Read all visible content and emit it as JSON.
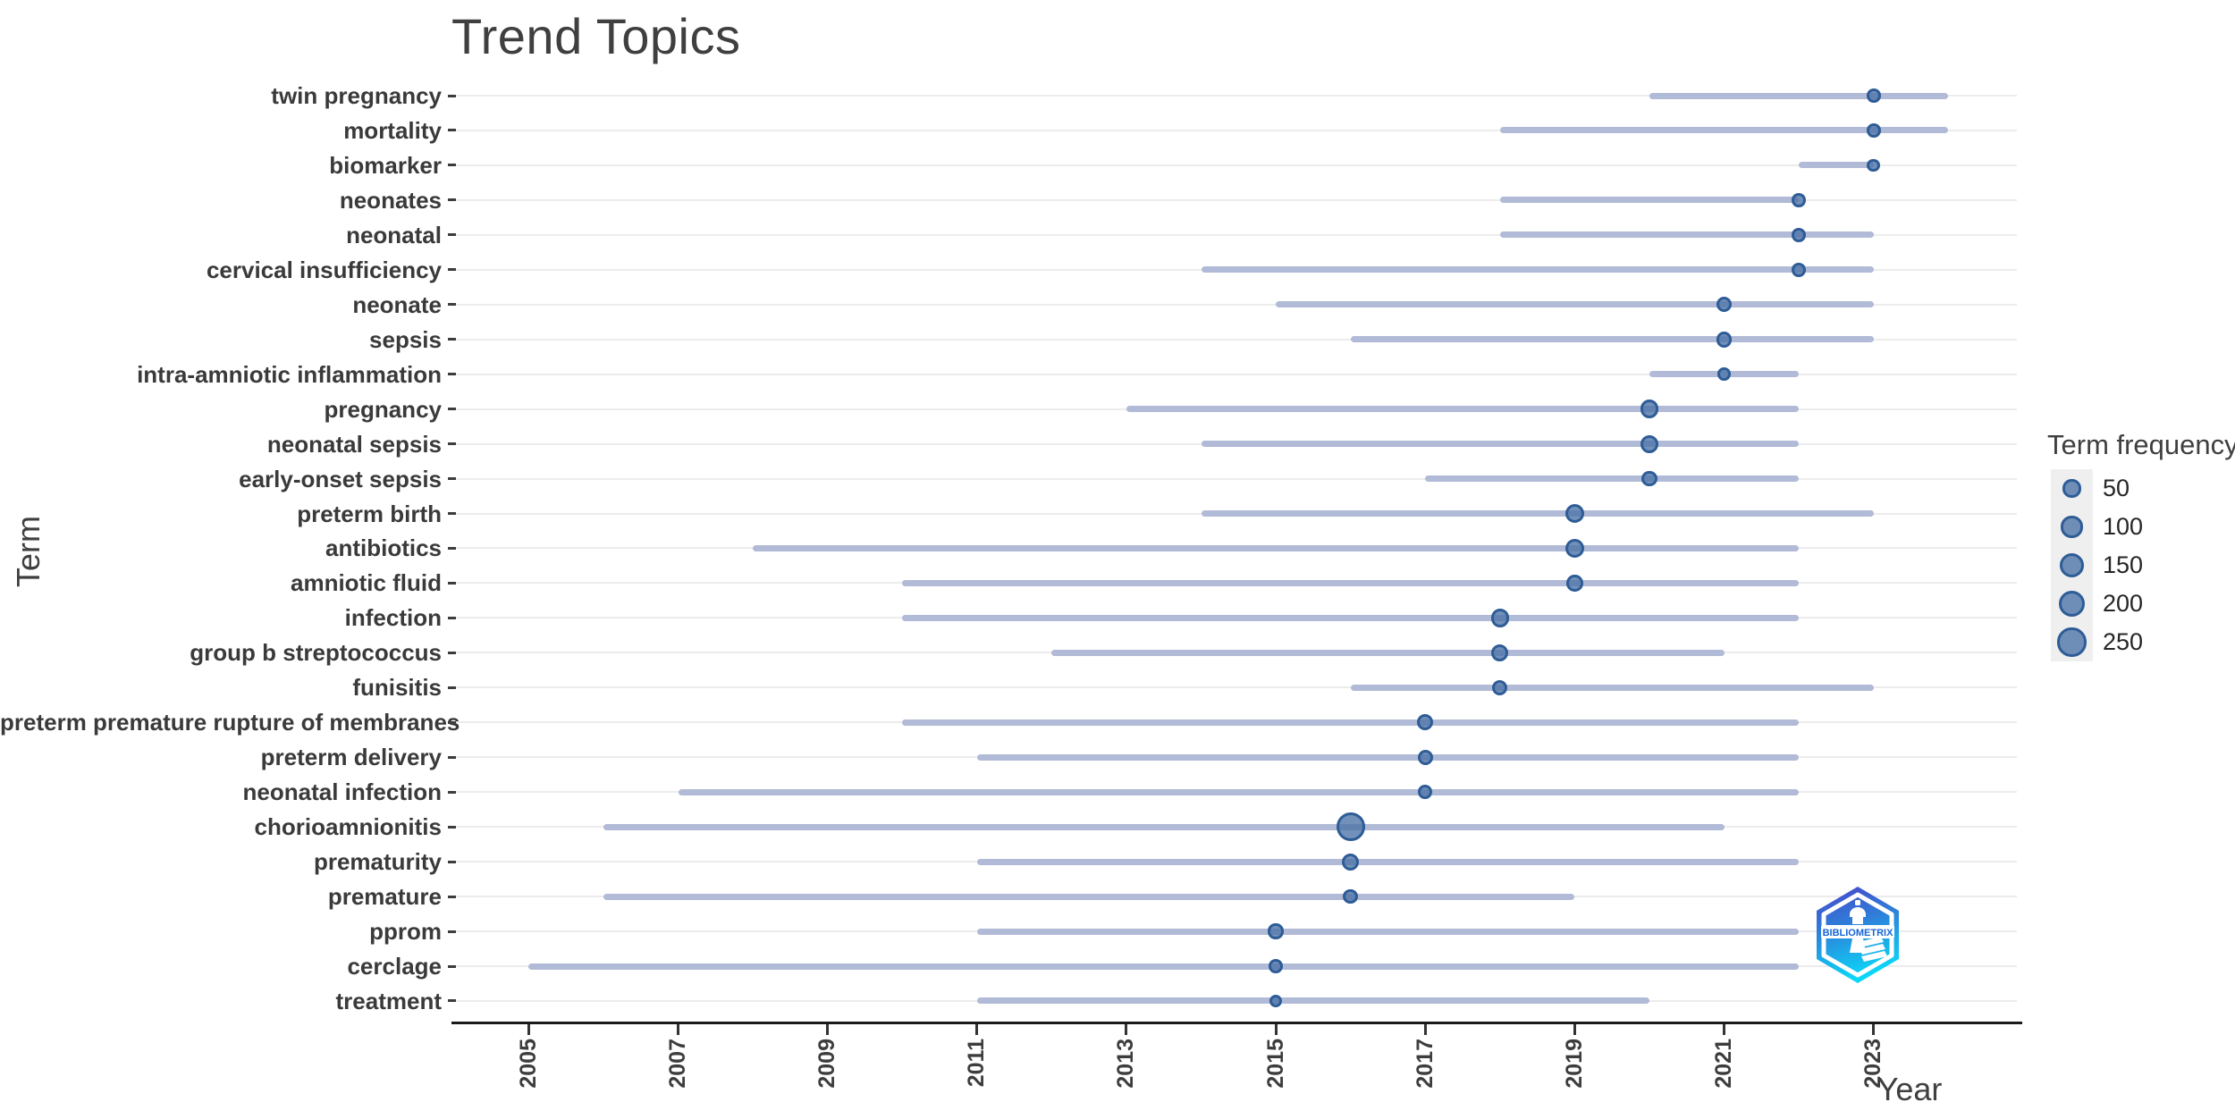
{
  "title": "Trend Topics",
  "logo": {
    "label": "BIBLIOMETRIX"
  },
  "colors": {
    "title_text": "#3f3f3f",
    "axis_text": "#3c3c3c",
    "grid": "#ececec",
    "segment": "#b1bad6",
    "dot_fill": "#6f93bf",
    "dot_stroke": "#2e5c96",
    "legend_key_bg": "#efefef",
    "logo_gradient_top": "#4a43c9",
    "logo_gradient_bottom": "#0cd6f7"
  },
  "chart_data": {
    "type": "scatter",
    "title": "Trend Topics",
    "xlabel": "Year",
    "ylabel": "Term",
    "xlim": [
      2004,
      2025
    ],
    "x_ticks": [
      2005,
      2007,
      2009,
      2011,
      2013,
      2015,
      2017,
      2019,
      2021,
      2023
    ],
    "grid": "horizontal",
    "legend": {
      "title": "Term frequency",
      "position": "right",
      "sizes": [
        50,
        100,
        150,
        200,
        250
      ]
    },
    "terms": [
      {
        "term": "twin pregnancy",
        "year_start": 2020,
        "year_peak": 2023,
        "year_end": 2024,
        "freq": 15
      },
      {
        "term": "mortality",
        "year_start": 2018,
        "year_peak": 2023,
        "year_end": 2024,
        "freq": 15
      },
      {
        "term": "biomarker",
        "year_start": 2022,
        "year_peak": 2023,
        "year_end": 2023,
        "freq": 10
      },
      {
        "term": "neonates",
        "year_start": 2018,
        "year_peak": 2022,
        "year_end": 2022,
        "freq": 15
      },
      {
        "term": "neonatal",
        "year_start": 2018,
        "year_peak": 2022,
        "year_end": 2023,
        "freq": 15
      },
      {
        "term": "cervical insufficiency",
        "year_start": 2014,
        "year_peak": 2022,
        "year_end": 2023,
        "freq": 15
      },
      {
        "term": "neonate",
        "year_start": 2015,
        "year_peak": 2021,
        "year_end": 2023,
        "freq": 25
      },
      {
        "term": "sepsis",
        "year_start": 2016,
        "year_peak": 2021,
        "year_end": 2023,
        "freq": 30
      },
      {
        "term": "intra-amniotic inflammation",
        "year_start": 2020,
        "year_peak": 2021,
        "year_end": 2022,
        "freq": 10
      },
      {
        "term": "pregnancy",
        "year_start": 2013,
        "year_peak": 2020,
        "year_end": 2022,
        "freq": 55
      },
      {
        "term": "neonatal sepsis",
        "year_start": 2014,
        "year_peak": 2020,
        "year_end": 2022,
        "freq": 50
      },
      {
        "term": "early-onset sepsis",
        "year_start": 2017,
        "year_peak": 2020,
        "year_end": 2022,
        "freq": 30
      },
      {
        "term": "preterm birth",
        "year_start": 2014,
        "year_peak": 2019,
        "year_end": 2023,
        "freq": 65
      },
      {
        "term": "antibiotics",
        "year_start": 2008,
        "year_peak": 2019,
        "year_end": 2022,
        "freq": 65
      },
      {
        "term": "amniotic fluid",
        "year_start": 2010,
        "year_peak": 2019,
        "year_end": 2022,
        "freq": 35
      },
      {
        "term": "infection",
        "year_start": 2010,
        "year_peak": 2018,
        "year_end": 2022,
        "freq": 55
      },
      {
        "term": "group b streptococcus",
        "year_start": 2012,
        "year_peak": 2018,
        "year_end": 2021,
        "freq": 40
      },
      {
        "term": "funisitis",
        "year_start": 2016,
        "year_peak": 2018,
        "year_end": 2023,
        "freq": 25
      },
      {
        "term": "preterm premature rupture of membranes",
        "year_start": 2010,
        "year_peak": 2017,
        "year_end": 2022,
        "freq": 30
      },
      {
        "term": "preterm delivery",
        "year_start": 2011,
        "year_peak": 2017,
        "year_end": 2022,
        "freq": 25
      },
      {
        "term": "neonatal infection",
        "year_start": 2007,
        "year_peak": 2017,
        "year_end": 2022,
        "freq": 15
      },
      {
        "term": "chorioamnionitis",
        "year_start": 2006,
        "year_peak": 2016,
        "year_end": 2021,
        "freq": 250
      },
      {
        "term": "prematurity",
        "year_start": 2011,
        "year_peak": 2016,
        "year_end": 2022,
        "freq": 40
      },
      {
        "term": "premature",
        "year_start": 2006,
        "year_peak": 2016,
        "year_end": 2019,
        "freq": 20
      },
      {
        "term": "pprom",
        "year_start": 2011,
        "year_peak": 2015,
        "year_end": 2022,
        "freq": 25
      },
      {
        "term": "cerclage",
        "year_start": 2005,
        "year_peak": 2015,
        "year_end": 2022,
        "freq": 15
      },
      {
        "term": "treatment",
        "year_start": 2011,
        "year_peak": 2015,
        "year_end": 2020,
        "freq": 8
      }
    ]
  }
}
